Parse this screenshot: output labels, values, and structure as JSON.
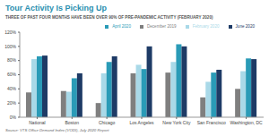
{
  "chart_data": {
    "type": "bar",
    "title": "Tour Activity Is Picking Up",
    "subtitle": "THREE OF PAST FOUR MONTHS HAVE BEEN OVER 90% OF PRE-PANDEMIC ACTIVITY (FEBRUARY 2020)",
    "source": "Source: VTS Office Demand Index (VODI), July 2020 Report",
    "categories": [
      "National",
      "Boston",
      "Chicago",
      "Los Angeles",
      "New York City",
      "San Francisco",
      "Washington, DC"
    ],
    "series": [
      {
        "name": "December 2019",
        "color": "#7f7f7f",
        "values": [
          35,
          37,
          20,
          62,
          63,
          28,
          40
        ]
      },
      {
        "name": "February 2020",
        "color": "#a9d9e8",
        "values": [
          82,
          36,
          62,
          74,
          78,
          50,
          65
        ]
      },
      {
        "name": "April 2020",
        "color": "#2a9bb7",
        "values": [
          86,
          55,
          78,
          68,
          103,
          63,
          83
        ]
      },
      {
        "name": "June 2020",
        "color": "#1e3b66",
        "values": [
          87,
          62,
          86,
          100,
          100,
          67,
          82
        ]
      }
    ],
    "ylim": [
      0,
      120
    ],
    "yticks": [
      {
        "value": 0,
        "label": "0%"
      },
      {
        "value": 20,
        "label": "20%"
      },
      {
        "value": 40,
        "label": "40%"
      },
      {
        "value": 60,
        "label": "60%"
      },
      {
        "value": 80,
        "label": "80%"
      },
      {
        "value": 100,
        "label": "100%"
      },
      {
        "value": 120,
        "label": "120%"
      }
    ],
    "grid": false,
    "legend": "upper right"
  }
}
